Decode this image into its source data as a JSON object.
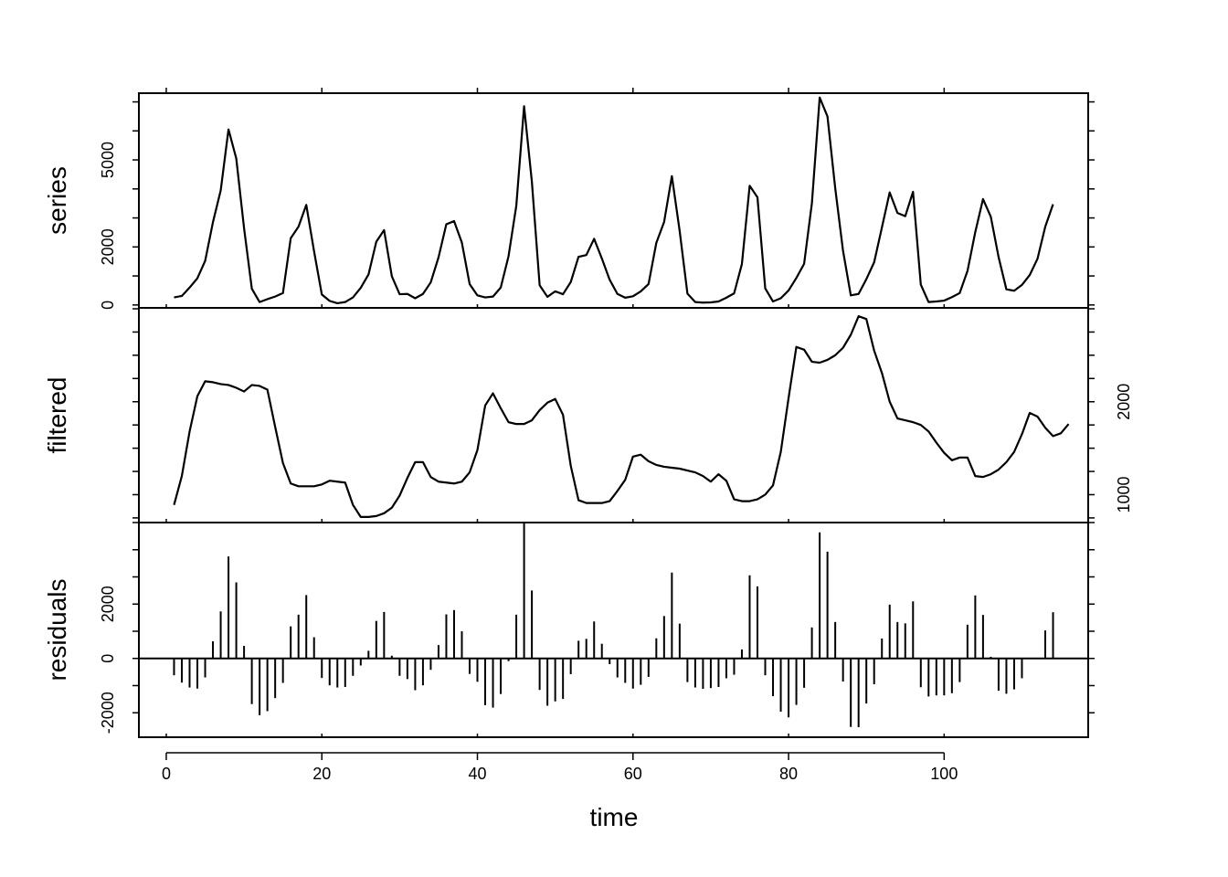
{
  "chart_data": {
    "type": "line",
    "xlabel": "time",
    "xlim": [
      1,
      114
    ],
    "xticks": [
      "0",
      "20",
      "40",
      "60",
      "80",
      "100"
    ],
    "panels": [
      {
        "name": "series",
        "ylabel": "series",
        "type": "line",
        "ylim": [
          -100,
          7300
        ],
        "yticks": [
          "0",
          "2000",
          "5000"
        ],
        "ytick_values": [
          0,
          2000,
          5000
        ],
        "values": [
          260,
          310,
          600,
          920,
          1520,
          2850,
          3950,
          6050,
          5050,
          2650,
          560,
          100,
          200,
          290,
          410,
          2300,
          2700,
          3450,
          1850,
          360,
          140,
          60,
          100,
          260,
          590,
          1050,
          2180,
          2580,
          990,
          370,
          380,
          230,
          380,
          780,
          1640,
          2780,
          2890,
          2150,
          720,
          330,
          260,
          290,
          600,
          1680,
          3420,
          6850,
          4250,
          680,
          280,
          470,
          370,
          790,
          1660,
          1720,
          2280,
          1600,
          870,
          380,
          250,
          300,
          470,
          720,
          2140,
          2860,
          4440,
          2550,
          390,
          100,
          80,
          90,
          120,
          250,
          400,
          1410,
          4110,
          3710,
          570,
          120,
          230,
          500,
          930,
          1420,
          3510,
          7150,
          6500,
          4020,
          1870,
          330,
          380,
          890,
          1470,
          2670,
          3880,
          3170,
          3060,
          3900,
          700,
          100,
          120,
          150,
          270,
          410,
          1170,
          2510,
          3650,
          3040,
          1650,
          540,
          490,
          690,
          1030,
          1590,
          2700,
          3470
        ]
      },
      {
        "name": "filtered",
        "ylabel": "filtered",
        "type": "line",
        "ylim": [
          700,
          3010
        ],
        "yticks": [
          "1000",
          "2000"
        ],
        "ytick_values": [
          1000,
          2000
        ],
        "values": [
          890,
          1200,
          1680,
          2060,
          2220,
          2210,
          2190,
          2180,
          2150,
          2110,
          2180,
          2170,
          2130,
          1730,
          1340,
          1120,
          1090,
          1090,
          1090,
          1110,
          1150,
          1140,
          1130,
          890,
          760,
          760,
          770,
          800,
          860,
          990,
          1180,
          1350,
          1350,
          1190,
          1140,
          1130,
          1120,
          1140,
          1240,
          1480,
          1960,
          2090,
          1930,
          1780,
          1760,
          1760,
          1800,
          1910,
          1990,
          2030,
          1860,
          1310,
          940,
          910,
          910,
          910,
          930,
          1040,
          1160,
          1410,
          1430,
          1360,
          1320,
          1300,
          1290,
          1280,
          1260,
          1240,
          1200,
          1140,
          1220,
          1150,
          950,
          930,
          930,
          950,
          1000,
          1100,
          1460,
          2040,
          2590,
          2560,
          2430,
          2420,
          2450,
          2500,
          2580,
          2720,
          2920,
          2890,
          2550,
          2310,
          2000,
          1820,
          1800,
          1780,
          1750,
          1680,
          1560,
          1450,
          1370,
          1400,
          1400,
          1200,
          1190,
          1220,
          1270,
          1350,
          1460,
          1650,
          1880,
          1840,
          1720,
          1630,
          1660,
          1760
        ]
      },
      {
        "name": "residuals",
        "ylabel": "residuals",
        "type": "bar",
        "ylim": [
          -2900,
          5000
        ],
        "yticks": [
          "-2000",
          "0",
          "2000"
        ],
        "ytick_values": [
          -2000,
          0,
          2000
        ],
        "values": [
          -620,
          -890,
          -1070,
          -1110,
          -700,
          630,
          1730,
          3750,
          2800,
          460,
          -1680,
          -2090,
          -1940,
          -1460,
          -900,
          1180,
          1610,
          2330,
          780,
          -720,
          -990,
          -1070,
          -1050,
          -640,
          -260,
          280,
          1380,
          1710,
          100,
          -640,
          -760,
          -1170,
          -990,
          -420,
          490,
          1620,
          1780,
          1000,
          -570,
          -860,
          -1720,
          -1810,
          -1310,
          -100,
          1610,
          5000,
          2500,
          -1160,
          -1740,
          -1580,
          -1490,
          -580,
          650,
          720,
          1360,
          540,
          -210,
          -700,
          -900,
          -1110,
          -970,
          -680,
          740,
          1560,
          3160,
          1280,
          -870,
          -1070,
          -1120,
          -1090,
          -1050,
          -730,
          -600,
          330,
          3060,
          2650,
          -620,
          -1390,
          -1960,
          -2170,
          -1710,
          -1080,
          1140,
          4640,
          3930,
          1340,
          -850,
          -2520,
          -2530,
          -1660,
          -950,
          730,
          1980,
          1340,
          1290,
          2100,
          -1060,
          -1400,
          -1360,
          -1360,
          -1280,
          -870,
          1240,
          2320,
          1600,
          60,
          -1190,
          -1300,
          -1140,
          -730,
          0,
          0,
          1030,
          1700
        ]
      }
    ],
    "grid": false,
    "legend": "none"
  }
}
